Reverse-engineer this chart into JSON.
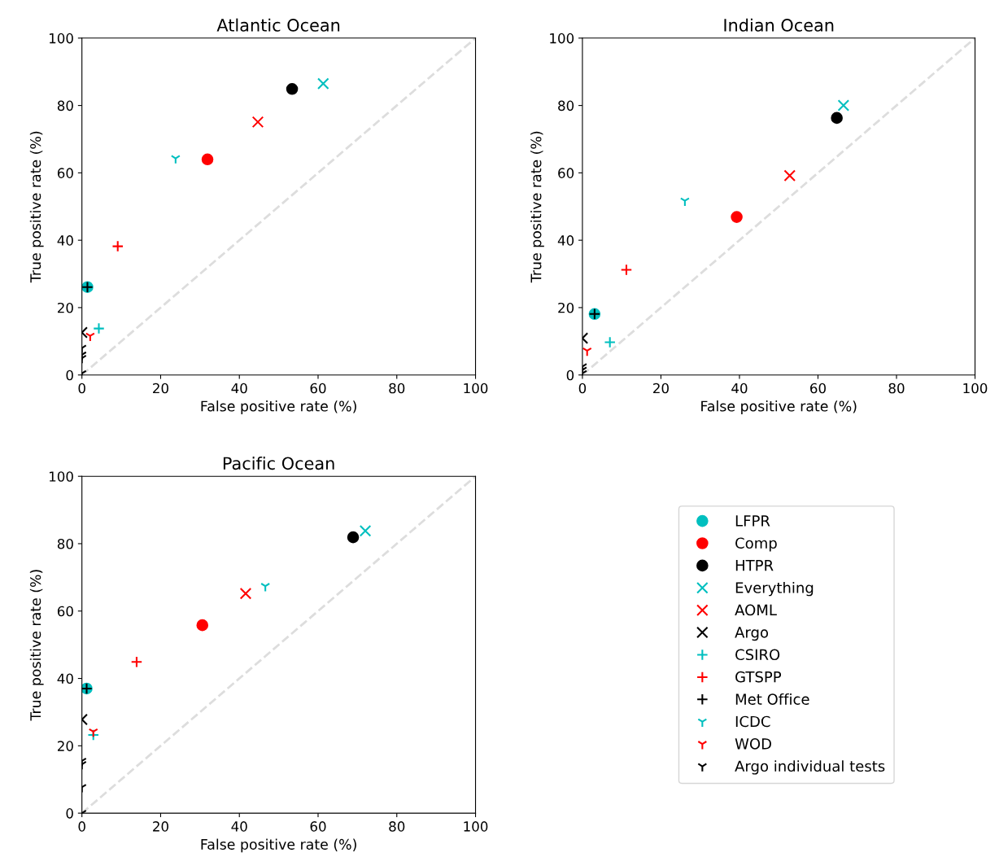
{
  "chart_data": [
    {
      "type": "scatter",
      "title": "Atlantic Ocean",
      "xlabel": "False positive rate (%)",
      "ylabel": "True positive rate (%)",
      "xlim": [
        0,
        100
      ],
      "ylim": [
        0,
        100
      ],
      "xticks": [
        0,
        20,
        40,
        60,
        80,
        100
      ],
      "yticks": [
        0,
        20,
        40,
        60,
        80,
        100
      ],
      "grid": false,
      "series": [
        {
          "type": "line",
          "color": "#dddddd",
          "line_style": "dashed",
          "marker": "none",
          "x": [
            0,
            100
          ],
          "values": [
            0,
            100
          ]
        },
        {
          "color": "#00bfbf",
          "marker": "circle",
          "x": [
            1.4
          ],
          "values": [
            26.1
          ]
        },
        {
          "color": "#ff0000",
          "marker": "circle",
          "x": [
            31.9
          ],
          "values": [
            64.0
          ]
        },
        {
          "color": "#000000",
          "marker": "circle",
          "x": [
            53.4
          ],
          "values": [
            84.9
          ]
        },
        {
          "color": "#00bfbf",
          "marker": "cross",
          "x": [
            61.3
          ],
          "values": [
            86.5
          ]
        },
        {
          "color": "#ff0000",
          "marker": "cross",
          "x": [
            44.7
          ],
          "values": [
            75.1
          ]
        },
        {
          "color": "#000000",
          "marker": "cross",
          "x": [
            0
          ],
          "values": [
            12.6
          ]
        },
        {
          "color": "#00bfbf",
          "marker": "plus",
          "x": [
            4.3
          ],
          "values": [
            13.8
          ]
        },
        {
          "color": "#ff0000",
          "marker": "plus",
          "x": [
            9.1
          ],
          "values": [
            38.2
          ]
        },
        {
          "color": "#000000",
          "marker": "plus",
          "x": [
            1.4
          ],
          "values": [
            26.1
          ]
        },
        {
          "color": "#00bfbf",
          "x": [
            23.8
          ],
          "values": [
            64.3
          ]
        },
        {
          "color": "#ff0000",
          "x": [
            2.1
          ],
          "values": [
            11.6
          ]
        },
        {
          "color": "#000000",
          "x": [
            0,
            0,
            0,
            0
          ],
          "values": [
            8,
            6,
            5,
            0.5
          ]
        }
      ]
    },
    {
      "type": "scatter",
      "title": "Indian Ocean",
      "xlabel": "False positive rate (%)",
      "ylabel": "True positive rate (%)",
      "xlim": [
        0,
        100
      ],
      "ylim": [
        0,
        100
      ],
      "xticks": [
        0,
        20,
        40,
        60,
        80,
        100
      ],
      "yticks": [
        0,
        20,
        40,
        60,
        80,
        100
      ],
      "grid": false,
      "series": [
        {
          "type": "line",
          "color": "#dddddd",
          "line_style": "dashed",
          "marker": "none",
          "x": [
            0,
            100
          ],
          "values": [
            0,
            100
          ]
        },
        {
          "color": "#00bfbf",
          "marker": "circle",
          "x": [
            3.1
          ],
          "values": [
            18.1
          ]
        },
        {
          "color": "#ff0000",
          "marker": "circle",
          "x": [
            39.3
          ],
          "values": [
            46.9
          ]
        },
        {
          "color": "#000000",
          "marker": "circle",
          "x": [
            64.8
          ],
          "values": [
            76.3
          ]
        },
        {
          "color": "#00bfbf",
          "marker": "cross",
          "x": [
            66.5
          ],
          "values": [
            80.0
          ]
        },
        {
          "color": "#ff0000",
          "marker": "cross",
          "x": [
            52.8
          ],
          "values": [
            59.2
          ]
        },
        {
          "color": "#000000",
          "marker": "cross",
          "x": [
            0
          ],
          "values": [
            10.9
          ]
        },
        {
          "color": "#00bfbf",
          "marker": "plus",
          "x": [
            7.0
          ],
          "values": [
            9.7
          ]
        },
        {
          "color": "#ff0000",
          "marker": "plus",
          "x": [
            11.2
          ],
          "values": [
            31.2
          ]
        },
        {
          "color": "#000000",
          "marker": "plus",
          "x": [
            3.1
          ],
          "values": [
            18.1
          ]
        },
        {
          "color": "#00bfbf",
          "x": [
            26.1
          ],
          "values": [
            51.7
          ]
        },
        {
          "color": "#ff0000",
          "x": [
            1.2
          ],
          "values": [
            7.2
          ]
        },
        {
          "color": "#000000",
          "x": [
            0,
            0,
            0
          ],
          "values": [
            2.5,
            1.5,
            0.5
          ]
        }
      ]
    },
    {
      "type": "scatter",
      "title": "Pacific Ocean",
      "xlabel": "False positive rate (%)",
      "ylabel": "True positive rate (%)",
      "xlim": [
        0,
        100
      ],
      "ylim": [
        0,
        100
      ],
      "xticks": [
        0,
        20,
        40,
        60,
        80,
        100
      ],
      "yticks": [
        0,
        20,
        40,
        60,
        80,
        100
      ],
      "grid": false,
      "legend": "right",
      "series": [
        {
          "type": "line",
          "color": "#dddddd",
          "line_style": "dashed",
          "marker": "none",
          "x": [
            0,
            100
          ],
          "values": [
            0,
            100
          ]
        },
        {
          "name": "LFPR",
          "color": "#00bfbf",
          "marker": "circle",
          "x": [
            1.2
          ],
          "values": [
            37.0
          ]
        },
        {
          "name": "Comp",
          "color": "#ff0000",
          "marker": "circle",
          "x": [
            30.6
          ],
          "values": [
            55.8
          ]
        },
        {
          "name": "HTPR",
          "color": "#000000",
          "marker": "circle",
          "x": [
            68.9
          ],
          "values": [
            81.9
          ]
        },
        {
          "name": "Everything",
          "color": "#00bfbf",
          "marker": "cross",
          "x": [
            72.0
          ],
          "values": [
            83.8
          ]
        },
        {
          "name": "AOML",
          "color": "#ff0000",
          "marker": "cross",
          "x": [
            41.6
          ],
          "values": [
            65.2
          ]
        },
        {
          "name": "Argo",
          "color": "#000000",
          "marker": "cross",
          "x": [
            0
          ],
          "values": [
            27.8
          ]
        },
        {
          "name": "CSIRO",
          "color": "#00bfbf",
          "marker": "plus",
          "x": [
            2.9
          ],
          "values": [
            23.2
          ]
        },
        {
          "name": "GTSPP",
          "color": "#ff0000",
          "marker": "plus",
          "x": [
            13.9
          ],
          "values": [
            44.9
          ]
        },
        {
          "name": "Met Office",
          "color": "#000000",
          "marker": "plus",
          "x": [
            1.2
          ],
          "values": [
            37.0
          ]
        },
        {
          "name": "ICDC",
          "color": "#00bfbf",
          "x": [
            46.6
          ],
          "values": [
            67.4
          ]
        },
        {
          "name": "WOD",
          "color": "#ff0000",
          "x": [
            2.9
          ],
          "values": [
            24.2
          ]
        },
        {
          "name": "Argo individual tests",
          "color": "#000000",
          "x": [
            0,
            0,
            0,
            0
          ],
          "values": [
            15.5,
            14.5,
            7.7,
            0
          ]
        }
      ]
    }
  ]
}
